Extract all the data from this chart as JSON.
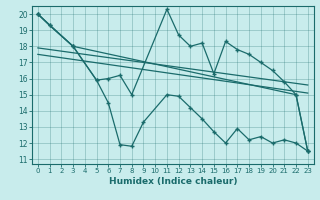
{
  "title": "",
  "xlabel": "Humidex (Indice chaleur)",
  "bg_color": "#c8ecec",
  "line_color": "#1a6b6b",
  "xlim": [
    -0.5,
    23.5
  ],
  "ylim": [
    10.7,
    20.5
  ],
  "yticks": [
    11,
    12,
    13,
    14,
    15,
    16,
    17,
    18,
    19,
    20
  ],
  "xticks": [
    0,
    1,
    2,
    3,
    4,
    5,
    6,
    7,
    8,
    9,
    10,
    11,
    12,
    13,
    14,
    15,
    16,
    17,
    18,
    19,
    20,
    21,
    22,
    23
  ],
  "line_upper_x": [
    0,
    1,
    3,
    22,
    23
  ],
  "line_upper_y": [
    20.0,
    19.3,
    18.0,
    15.0,
    11.5
  ],
  "line_jagged_x": [
    0,
    1,
    3,
    5,
    6,
    7,
    8,
    11,
    12,
    13,
    14,
    15,
    16,
    17,
    18,
    19,
    20,
    21,
    22,
    23
  ],
  "line_jagged_y": [
    20.0,
    19.3,
    18.0,
    15.9,
    16.0,
    16.2,
    15.0,
    20.3,
    18.7,
    18.0,
    18.2,
    16.3,
    18.3,
    17.8,
    17.5,
    17.0,
    16.5,
    15.8,
    15.0,
    11.5
  ],
  "line_lower_x": [
    0,
    3,
    5,
    6,
    7,
    8,
    9,
    11,
    12,
    13,
    14,
    15,
    16,
    17,
    18,
    19,
    20,
    21,
    22,
    23
  ],
  "line_lower_y": [
    20.0,
    18.0,
    15.9,
    14.5,
    11.9,
    11.8,
    13.3,
    15.0,
    14.9,
    14.2,
    13.5,
    12.7,
    12.0,
    12.9,
    12.2,
    12.4,
    12.0,
    12.2,
    12.0,
    11.5
  ],
  "trend1_x": [
    0,
    23
  ],
  "trend1_y": [
    17.9,
    15.6
  ],
  "trend2_x": [
    0,
    23
  ],
  "trend2_y": [
    17.5,
    15.1
  ]
}
